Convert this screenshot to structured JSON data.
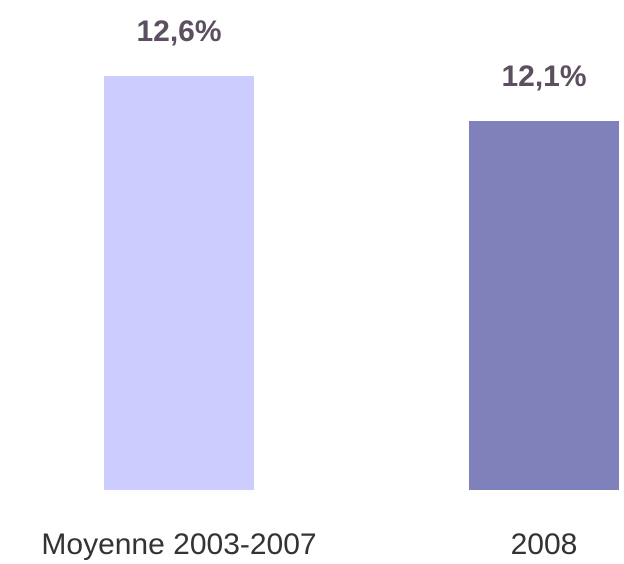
{
  "chart_data": {
    "type": "bar",
    "categories": [
      "Moyenne 2003-2007",
      "2008"
    ],
    "values": [
      12.6,
      12.1
    ],
    "value_labels": [
      "12,6%",
      "12,1%"
    ],
    "colors": [
      "#ccccff",
      "#8080bb"
    ],
    "ylim": [
      8,
      13
    ]
  }
}
